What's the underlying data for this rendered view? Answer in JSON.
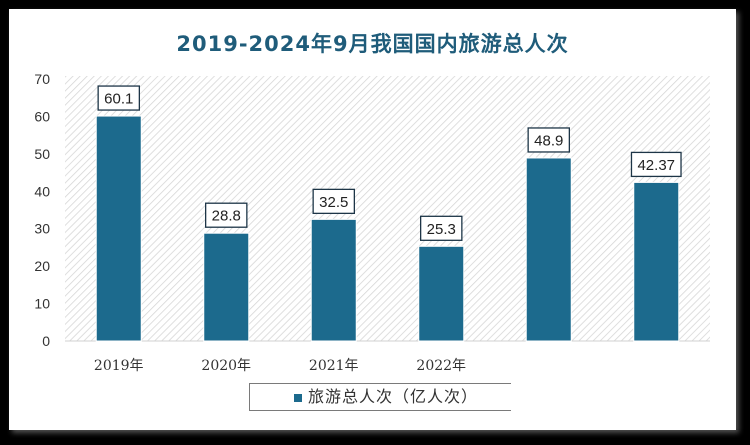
{
  "colors": {
    "bar": "#1c6a8d",
    "title": "#1f5c7a",
    "label_border": "#1d3547"
  },
  "chart_data": {
    "type": "bar",
    "title": "2019-2024年9月我国国内旅游总人次",
    "xlabel": "",
    "ylabel": "",
    "categories": [
      "2019年",
      "2020年",
      "2021年",
      "2022年",
      "",
      ""
    ],
    "series": [
      {
        "name": "旅游总人次（亿人次）",
        "values": [
          60.1,
          28.8,
          32.5,
          25.3,
          48.9,
          42.37
        ]
      }
    ],
    "ylim": [
      0,
      70
    ],
    "yticks": [
      0,
      10,
      20,
      30,
      40,
      50,
      60,
      70
    ],
    "grid": false,
    "legend_position": "bottom"
  }
}
